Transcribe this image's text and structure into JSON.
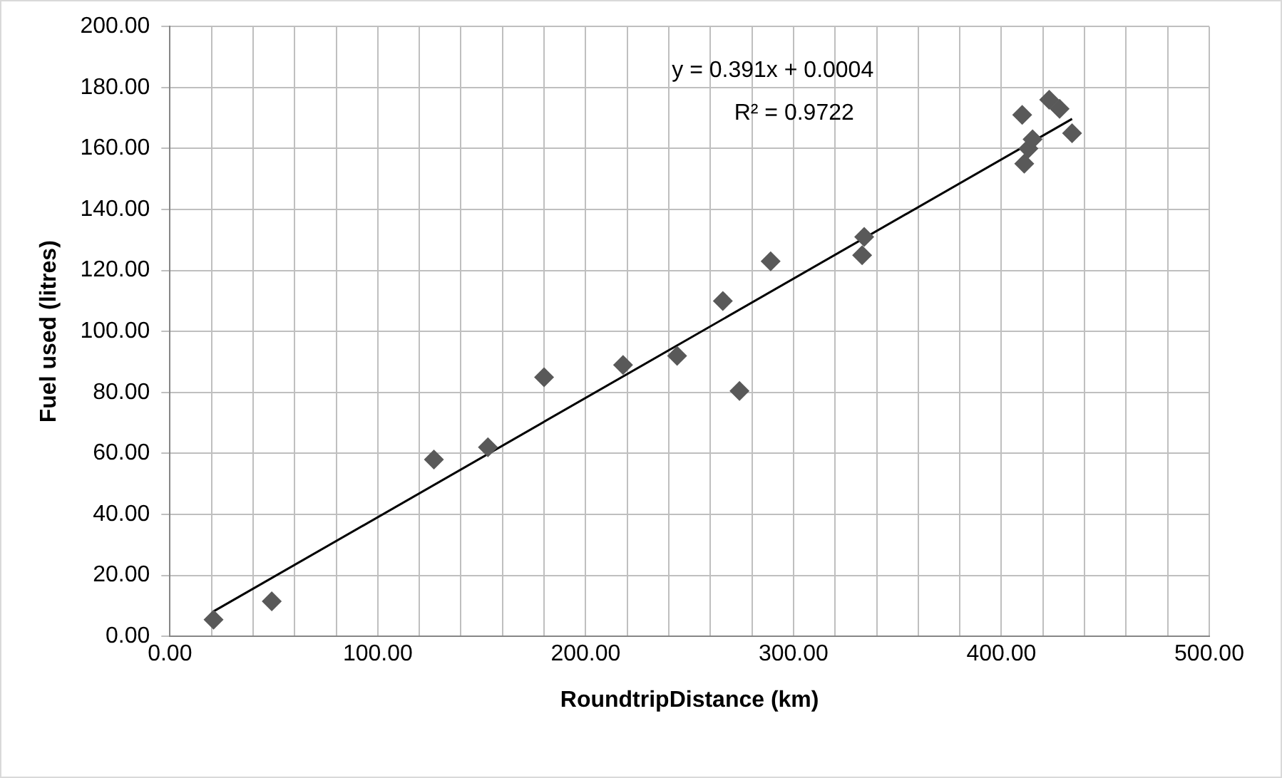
{
  "chart_data": {
    "type": "scatter",
    "xlabel": "RoundtripDistance (km)",
    "ylabel": "Fuel used (litres)",
    "xlim": [
      0,
      500
    ],
    "xticks": [
      {
        "value": 0,
        "label": "0.00"
      },
      {
        "value": 20,
        "label": null
      },
      {
        "value": 40,
        "label": null
      },
      {
        "value": 60,
        "label": null
      },
      {
        "value": 80,
        "label": null
      },
      {
        "value": 100,
        "label": "100.00"
      },
      {
        "value": 120,
        "label": null
      },
      {
        "value": 140,
        "label": null
      },
      {
        "value": 160,
        "label": null
      },
      {
        "value": 180,
        "label": null
      },
      {
        "value": 200,
        "label": "200.00"
      },
      {
        "value": 220,
        "label": null
      },
      {
        "value": 240,
        "label": null
      },
      {
        "value": 260,
        "label": null
      },
      {
        "value": 280,
        "label": null
      },
      {
        "value": 300,
        "label": "300.00"
      },
      {
        "value": 320,
        "label": null
      },
      {
        "value": 340,
        "label": null
      },
      {
        "value": 360,
        "label": null
      },
      {
        "value": 380,
        "label": null
      },
      {
        "value": 400,
        "label": "400.00"
      },
      {
        "value": 420,
        "label": null
      },
      {
        "value": 440,
        "label": null
      },
      {
        "value": 460,
        "label": null
      },
      {
        "value": 480,
        "label": null
      },
      {
        "value": 500,
        "label": "500.00"
      }
    ],
    "ylim": [
      0,
      200
    ],
    "yticks": [
      {
        "value": 0,
        "label": "0.00"
      },
      {
        "value": 20,
        "label": "20.00"
      },
      {
        "value": 40,
        "label": "40.00"
      },
      {
        "value": 60,
        "label": "60.00"
      },
      {
        "value": 80,
        "label": "80.00"
      },
      {
        "value": 100,
        "label": "100.00"
      },
      {
        "value": 120,
        "label": "120.00"
      },
      {
        "value": 140,
        "label": "140.00"
      },
      {
        "value": 160,
        "label": "160.00"
      },
      {
        "value": 180,
        "label": "180.00"
      },
      {
        "value": 200,
        "label": "200.00"
      }
    ],
    "grid": true,
    "legend": false,
    "marker": "diamond",
    "series": [
      {
        "type": "scatter",
        "color": "#595959",
        "x": [
          21,
          49,
          127,
          153,
          180,
          218,
          244,
          266,
          274,
          289,
          333,
          334,
          410,
          411,
          413,
          415,
          423,
          428,
          434
        ],
        "values": [
          5.5,
          11.5,
          58,
          62,
          85,
          89,
          92,
          110,
          80.5,
          123,
          125,
          131,
          171,
          155,
          160,
          163,
          176,
          173,
          165
        ]
      },
      {
        "type": "line",
        "color": "#000000",
        "marker": "none",
        "x": [
          21,
          434
        ],
        "values": [
          8.2,
          169.7
        ]
      }
    ],
    "annotations": [
      "y = 0.391x + 0.0004",
      "R² = 0.9722"
    ]
  }
}
